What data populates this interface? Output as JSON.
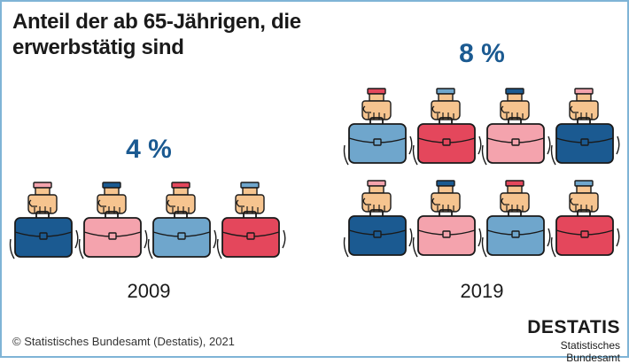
{
  "chart_data": {
    "type": "pictogram",
    "title": "Anteil der ab 65-Jährigen, die erwerbstätig sind",
    "categories": [
      "2009",
      "2019"
    ],
    "values": [
      4,
      8
    ],
    "value_labels": [
      "4 %",
      "8 %"
    ],
    "unit": "%",
    "icon": "hand-holding-briefcase-icon",
    "icons_per_unit_percent": 1
  },
  "colors": {
    "dark_blue": "#1b5a91",
    "light_pink": "#f4a3ad",
    "light_blue": "#6fa6cc",
    "red": "#e4475c",
    "skin": "#f6c48f",
    "outline": "#1a1a1a"
  },
  "footer": {
    "copyright": "© Statistisches Bundesamt (Destatis), 2021",
    "logo_text": "DESTATIS",
    "logo_subtitle": "Statistisches Bundesamt"
  }
}
